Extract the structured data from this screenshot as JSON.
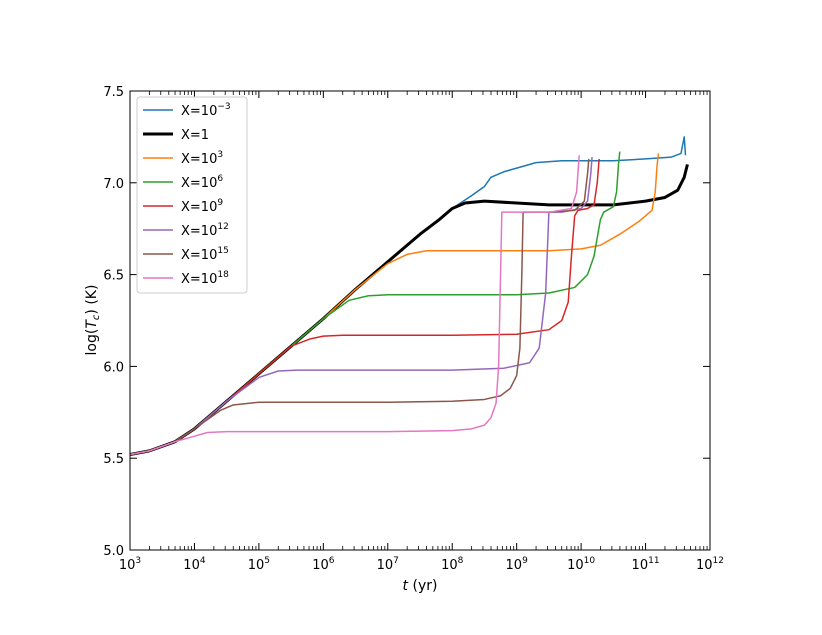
{
  "chart_data": {
    "type": "line",
    "title": "",
    "xlabel": "t (yr)",
    "ylabel": "log(Tc) (K)",
    "x_scale": "log",
    "xlim_log10": [
      3,
      12
    ],
    "ylim": [
      5.0,
      7.5
    ],
    "grid": false,
    "legend_position": "upper-left",
    "x_ticks": [
      {
        "base": "10",
        "exp": "3",
        "v": 3
      },
      {
        "base": "10",
        "exp": "4",
        "v": 4
      },
      {
        "base": "10",
        "exp": "5",
        "v": 5
      },
      {
        "base": "10",
        "exp": "6",
        "v": 6
      },
      {
        "base": "10",
        "exp": "7",
        "v": 7
      },
      {
        "base": "10",
        "exp": "8",
        "v": 8
      },
      {
        "base": "10",
        "exp": "9",
        "v": 9
      },
      {
        "base": "10",
        "exp": "10",
        "v": 10
      },
      {
        "base": "10",
        "exp": "11",
        "v": 11
      },
      {
        "base": "10",
        "exp": "12",
        "v": 12
      }
    ],
    "y_ticks": [
      {
        "label": "5.0",
        "v": 5.0
      },
      {
        "label": "5.5",
        "v": 5.5
      },
      {
        "label": "6.0",
        "v": 6.0
      },
      {
        "label": "6.5",
        "v": 6.5
      },
      {
        "label": "7.0",
        "v": 7.0
      },
      {
        "label": "7.5",
        "v": 7.5
      }
    ],
    "series": [
      {
        "name": "X=10^-3",
        "legend_base": "X=10",
        "legend_exp": "−3",
        "color": "#1f77b4",
        "width": 1.5,
        "points": [
          [
            3.0,
            5.52
          ],
          [
            3.3,
            5.54
          ],
          [
            3.7,
            5.59
          ],
          [
            4.0,
            5.66
          ],
          [
            4.5,
            5.81
          ],
          [
            5.0,
            5.96
          ],
          [
            5.5,
            6.11
          ],
          [
            6.0,
            6.26
          ],
          [
            6.5,
            6.42
          ],
          [
            7.0,
            6.57
          ],
          [
            7.5,
            6.72
          ],
          [
            8.0,
            6.86
          ],
          [
            8.3,
            6.93
          ],
          [
            8.5,
            6.98
          ],
          [
            8.6,
            7.03
          ],
          [
            8.8,
            7.06
          ],
          [
            9.0,
            7.08
          ],
          [
            9.3,
            7.11
          ],
          [
            9.7,
            7.12
          ],
          [
            10.0,
            7.12
          ],
          [
            10.5,
            7.12
          ],
          [
            11.0,
            7.13
          ],
          [
            11.4,
            7.14
          ],
          [
            11.55,
            7.16
          ],
          [
            11.6,
            7.25
          ],
          [
            11.62,
            7.15
          ]
        ]
      },
      {
        "name": "X=1",
        "legend_base": "X=1",
        "legend_exp": "",
        "color": "#000000",
        "width": 3,
        "points": [
          [
            3.0,
            5.52
          ],
          [
            3.3,
            5.54
          ],
          [
            3.7,
            5.59
          ],
          [
            4.0,
            5.66
          ],
          [
            4.5,
            5.81
          ],
          [
            5.0,
            5.96
          ],
          [
            5.5,
            6.11
          ],
          [
            6.0,
            6.26
          ],
          [
            6.5,
            6.42
          ],
          [
            7.0,
            6.57
          ],
          [
            7.5,
            6.72
          ],
          [
            7.8,
            6.8
          ],
          [
            8.0,
            6.86
          ],
          [
            8.2,
            6.89
          ],
          [
            8.5,
            6.9
          ],
          [
            9.0,
            6.89
          ],
          [
            9.5,
            6.88
          ],
          [
            10.0,
            6.88
          ],
          [
            10.5,
            6.88
          ],
          [
            11.0,
            6.9
          ],
          [
            11.3,
            6.92
          ],
          [
            11.5,
            6.96
          ],
          [
            11.6,
            7.03
          ],
          [
            11.65,
            7.1
          ]
        ]
      },
      {
        "name": "X=10^3",
        "legend_base": "X=10",
        "legend_exp": "3",
        "color": "#ff7f0e",
        "width": 1.5,
        "points": [
          [
            3.0,
            5.52
          ],
          [
            3.3,
            5.54
          ],
          [
            3.7,
            5.59
          ],
          [
            4.0,
            5.66
          ],
          [
            4.5,
            5.81
          ],
          [
            5.0,
            5.96
          ],
          [
            5.5,
            6.11
          ],
          [
            6.0,
            6.26
          ],
          [
            6.5,
            6.42
          ],
          [
            7.0,
            6.56
          ],
          [
            7.3,
            6.61
          ],
          [
            7.6,
            6.63
          ],
          [
            8.0,
            6.63
          ],
          [
            9.0,
            6.63
          ],
          [
            9.5,
            6.63
          ],
          [
            10.0,
            6.64
          ],
          [
            10.3,
            6.66
          ],
          [
            10.6,
            6.72
          ],
          [
            10.9,
            6.79
          ],
          [
            11.1,
            6.85
          ],
          [
            11.15,
            6.95
          ],
          [
            11.18,
            7.1
          ],
          [
            11.2,
            7.16
          ]
        ]
      },
      {
        "name": "X=10^6",
        "legend_base": "X=10",
        "legend_exp": "6",
        "color": "#2ca02c",
        "width": 1.5,
        "points": [
          [
            3.0,
            5.52
          ],
          [
            3.3,
            5.54
          ],
          [
            3.7,
            5.59
          ],
          [
            4.0,
            5.66
          ],
          [
            4.5,
            5.81
          ],
          [
            5.0,
            5.96
          ],
          [
            5.5,
            6.11
          ],
          [
            6.0,
            6.26
          ],
          [
            6.4,
            6.36
          ],
          [
            6.7,
            6.385
          ],
          [
            7.0,
            6.39
          ],
          [
            8.0,
            6.39
          ],
          [
            9.0,
            6.39
          ],
          [
            9.5,
            6.4
          ],
          [
            9.9,
            6.43
          ],
          [
            10.1,
            6.5
          ],
          [
            10.2,
            6.6
          ],
          [
            10.3,
            6.8
          ],
          [
            10.35,
            6.84
          ],
          [
            10.5,
            6.87
          ],
          [
            10.55,
            6.95
          ],
          [
            10.58,
            7.1
          ],
          [
            10.6,
            7.17
          ]
        ]
      },
      {
        "name": "X=10^9",
        "legend_base": "X=10",
        "legend_exp": "9",
        "color": "#d62728",
        "width": 1.5,
        "points": [
          [
            3.0,
            5.52
          ],
          [
            3.3,
            5.54
          ],
          [
            3.7,
            5.59
          ],
          [
            4.0,
            5.66
          ],
          [
            4.5,
            5.81
          ],
          [
            5.0,
            5.96
          ],
          [
            5.5,
            6.11
          ],
          [
            5.8,
            6.15
          ],
          [
            6.0,
            6.165
          ],
          [
            6.3,
            6.17
          ],
          [
            7.0,
            6.17
          ],
          [
            8.0,
            6.17
          ],
          [
            9.0,
            6.175
          ],
          [
            9.5,
            6.2
          ],
          [
            9.7,
            6.25
          ],
          [
            9.8,
            6.35
          ],
          [
            9.85,
            6.6
          ],
          [
            9.9,
            6.82
          ],
          [
            9.95,
            6.85
          ],
          [
            10.1,
            6.86
          ],
          [
            10.2,
            6.88
          ],
          [
            10.25,
            7.0
          ],
          [
            10.28,
            7.13
          ]
        ]
      },
      {
        "name": "X=10^12",
        "legend_base": "X=10",
        "legend_exp": "12",
        "color": "#9467bd",
        "width": 1.5,
        "points": [
          [
            3.0,
            5.52
          ],
          [
            3.3,
            5.54
          ],
          [
            3.7,
            5.59
          ],
          [
            4.0,
            5.66
          ],
          [
            4.5,
            5.81
          ],
          [
            5.0,
            5.94
          ],
          [
            5.3,
            5.975
          ],
          [
            5.6,
            5.98
          ],
          [
            6.0,
            5.98
          ],
          [
            7.0,
            5.98
          ],
          [
            8.0,
            5.98
          ],
          [
            8.8,
            5.99
          ],
          [
            9.2,
            6.02
          ],
          [
            9.35,
            6.1
          ],
          [
            9.45,
            6.4
          ],
          [
            9.5,
            6.84
          ],
          [
            9.7,
            6.84
          ],
          [
            10.0,
            6.86
          ],
          [
            10.1,
            6.9
          ],
          [
            10.15,
            7.05
          ],
          [
            10.17,
            7.14
          ]
        ]
      },
      {
        "name": "X=10^15",
        "legend_base": "X=10",
        "legend_exp": "15",
        "color": "#8c564b",
        "width": 1.5,
        "points": [
          [
            3.0,
            5.52
          ],
          [
            3.3,
            5.54
          ],
          [
            3.7,
            5.59
          ],
          [
            4.0,
            5.66
          ],
          [
            4.4,
            5.76
          ],
          [
            4.6,
            5.79
          ],
          [
            5.0,
            5.805
          ],
          [
            6.0,
            5.805
          ],
          [
            7.0,
            5.805
          ],
          [
            8.0,
            5.81
          ],
          [
            8.5,
            5.82
          ],
          [
            8.75,
            5.84
          ],
          [
            8.9,
            5.88
          ],
          [
            9.0,
            5.95
          ],
          [
            9.05,
            6.1
          ],
          [
            9.08,
            6.5
          ],
          [
            9.1,
            6.84
          ],
          [
            9.5,
            6.84
          ],
          [
            9.9,
            6.85
          ],
          [
            10.05,
            6.9
          ],
          [
            10.1,
            7.05
          ],
          [
            10.12,
            7.13
          ]
        ]
      },
      {
        "name": "X=10^18",
        "legend_base": "X=10",
        "legend_exp": "18",
        "color": "#e377c2",
        "width": 1.5,
        "points": [
          [
            3.0,
            5.52
          ],
          [
            3.3,
            5.54
          ],
          [
            3.7,
            5.59
          ],
          [
            4.0,
            5.62
          ],
          [
            4.2,
            5.64
          ],
          [
            4.5,
            5.645
          ],
          [
            5.0,
            5.645
          ],
          [
            6.0,
            5.645
          ],
          [
            7.0,
            5.645
          ],
          [
            8.0,
            5.65
          ],
          [
            8.3,
            5.66
          ],
          [
            8.5,
            5.68
          ],
          [
            8.6,
            5.72
          ],
          [
            8.68,
            5.8
          ],
          [
            8.72,
            6.0
          ],
          [
            8.75,
            6.5
          ],
          [
            8.77,
            6.84
          ],
          [
            9.0,
            6.84
          ],
          [
            9.5,
            6.84
          ],
          [
            9.85,
            6.86
          ],
          [
            9.93,
            6.95
          ],
          [
            9.97,
            7.15
          ]
        ]
      }
    ]
  }
}
